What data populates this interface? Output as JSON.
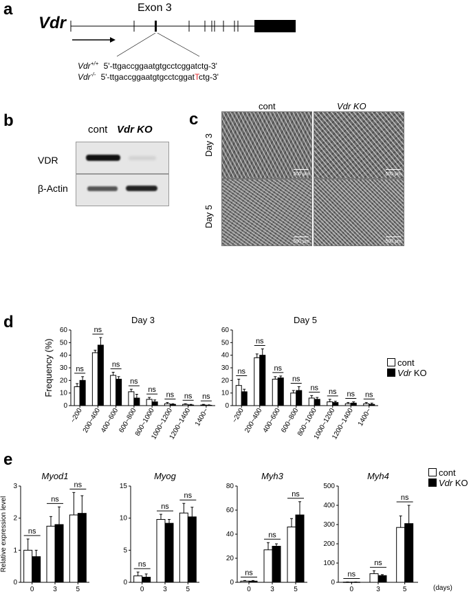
{
  "panels": {
    "a": "a",
    "b": "b",
    "c": "c",
    "d": "d",
    "e": "e"
  },
  "panel_a": {
    "gene": "Vdr",
    "exon_label": "Exon 3",
    "wt_genotype": "Vdr",
    "wt_sup": "+/+",
    "wt_seq": "5'-ttgaccggaatgtgcctcggatctg-3'",
    "ko_genotype": "Vdr",
    "ko_sup": "-/-",
    "ko_seq_pre": "5'-ttgaccggaatgtgcctcggat",
    "ko_seq_ins": "T",
    "ko_seq_post": "ctg-3'",
    "insertion_color": "#e0252a"
  },
  "panel_b": {
    "lane_cont": "cont",
    "lane_ko": "Vdr KO",
    "row_vdr": "VDR",
    "row_actin": "β-Actin"
  },
  "panel_c": {
    "col_cont": "cont",
    "col_ko": "Vdr KO",
    "row_day3": "Day 3",
    "row_day5": "Day 5",
    "scale": "500 μm"
  },
  "legend": {
    "cont": "cont",
    "ko_italic": "Vdr",
    "ko_rest": " KO"
  },
  "e_units": "(days)",
  "chart_data": [
    {
      "type": "bar",
      "panel": "d",
      "title": "Day 3",
      "ylabel": "Frequency (%)",
      "ylim": [
        0,
        60
      ],
      "yticks": [
        0,
        10,
        20,
        30,
        40,
        50,
        60
      ],
      "categories": [
        "~200",
        "200~400",
        "400~600",
        "600~800",
        "800~1000",
        "1000~1200",
        "1200~1400",
        "1400~"
      ],
      "series": [
        {
          "name": "cont",
          "values": [
            15,
            42,
            24,
            11,
            5,
            1.5,
            1,
            0.5
          ],
          "errors": [
            2.5,
            2,
            2.5,
            2,
            1.5,
            1,
            0.5,
            0.5
          ]
        },
        {
          "name": "Vdr KO",
          "values": [
            20,
            48,
            21,
            6,
            3,
            1,
            0.5,
            0.3
          ],
          "errors": [
            3,
            6,
            2,
            3,
            1.5,
            0.5,
            0.5,
            0.3
          ]
        }
      ],
      "annotations": [
        "ns",
        "ns",
        "ns",
        "ns",
        "ns",
        "ns",
        "ns",
        "ns"
      ]
    },
    {
      "type": "bar",
      "panel": "d",
      "title": "Day 5",
      "ylabel": "",
      "ylim": [
        0,
        60
      ],
      "yticks": [
        0,
        10,
        20,
        30,
        40,
        50,
        60
      ],
      "categories": [
        "~200",
        "200~400",
        "400~600",
        "600~800",
        "800~1000",
        "1000~1200",
        "1200~1400",
        "1400~"
      ],
      "series": [
        {
          "name": "cont",
          "values": [
            16,
            38,
            21,
            10,
            6,
            3,
            1.5,
            1.5
          ],
          "errors": [
            5,
            3,
            2,
            2,
            2,
            2,
            1,
            1
          ]
        },
        {
          "name": "Vdr KO",
          "values": [
            11,
            40,
            22,
            12,
            5,
            2.5,
            2,
            1
          ],
          "errors": [
            2,
            5,
            1.5,
            3,
            1.5,
            1,
            1,
            1
          ]
        }
      ],
      "annotations": [
        "ns",
        "ns",
        "ns",
        "ns",
        "ns",
        "ns",
        "ns",
        "ns"
      ]
    },
    {
      "type": "bar",
      "panel": "e",
      "title": "Myod1",
      "ylabel": "Relative expression level",
      "ylim": [
        0,
        3
      ],
      "yticks": [
        0,
        1,
        2,
        3
      ],
      "categories": [
        "0",
        "3",
        "5"
      ],
      "series": [
        {
          "name": "cont",
          "values": [
            1.0,
            1.75,
            2.1
          ],
          "errors": [
            0.35,
            0.3,
            0.7
          ]
        },
        {
          "name": "Vdr KO",
          "values": [
            0.8,
            1.8,
            2.15
          ],
          "errors": [
            0.2,
            0.55,
            0.55
          ]
        }
      ],
      "annotations": [
        "ns",
        "ns",
        "ns"
      ]
    },
    {
      "type": "bar",
      "panel": "e",
      "title": "Myog",
      "ylabel": "",
      "ylim": [
        0,
        15
      ],
      "yticks": [
        0,
        5,
        10,
        15
      ],
      "categories": [
        "0",
        "3",
        "5"
      ],
      "series": [
        {
          "name": "cont",
          "values": [
            1.0,
            9.8,
            10.8
          ],
          "errors": [
            0.6,
            0.8,
            1.5
          ]
        },
        {
          "name": "Vdr KO",
          "values": [
            0.8,
            9.2,
            10.2
          ],
          "errors": [
            0.5,
            0.6,
            1.5
          ]
        }
      ],
      "annotations": [
        "ns",
        "ns",
        "ns"
      ]
    },
    {
      "type": "bar",
      "panel": "e",
      "title": "Myh3",
      "ylabel": "",
      "ylim": [
        0,
        80
      ],
      "yticks": [
        0,
        20,
        40,
        60,
        80
      ],
      "categories": [
        "0",
        "3",
        "5"
      ],
      "series": [
        {
          "name": "cont",
          "values": [
            1,
            27,
            46
          ],
          "errors": [
            0.5,
            6,
            7
          ]
        },
        {
          "name": "Vdr KO",
          "values": [
            1,
            30,
            56
          ],
          "errors": [
            0.5,
            2,
            11
          ]
        }
      ],
      "annotations": [
        "ns",
        "ns",
        "ns"
      ]
    },
    {
      "type": "bar",
      "panel": "e",
      "title": "Myh4",
      "ylabel": "",
      "ylim": [
        0,
        500
      ],
      "yticks": [
        0,
        100,
        200,
        300,
        400,
        500
      ],
      "categories": [
        "0",
        "3",
        "5"
      ],
      "series": [
        {
          "name": "cont",
          "values": [
            1,
            45,
            285
          ],
          "errors": [
            1,
            15,
            60
          ]
        },
        {
          "name": "Vdr KO",
          "values": [
            1,
            35,
            305
          ],
          "errors": [
            1,
            5,
            95
          ]
        }
      ],
      "annotations": [
        "ns",
        "ns",
        "ns"
      ]
    }
  ]
}
